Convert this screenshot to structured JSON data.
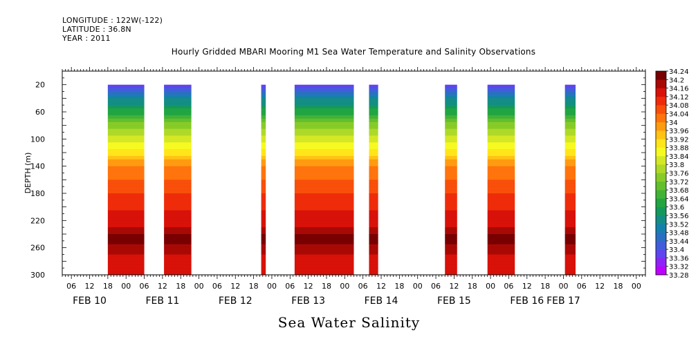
{
  "meta": {
    "longitude": "LONGITUDE : 122W(-122)",
    "latitude": "LATITUDE : 36.8N",
    "year": "YEAR : 2011"
  },
  "title": "Hourly Gridded MBARI Mooring M1 Sea Water Temperature and Salinity Observations",
  "subtitle": "Sea Water Salinity",
  "chart_data": {
    "type": "heatmap",
    "title": "Hourly Gridded MBARI Mooring M1 Sea Water Temperature and Salinity Observations",
    "xlabel": "",
    "ylabel": "DEPTH (m)",
    "colorbar_label": "Sea Water Salinity",
    "x_range_hours_from_feb10_00": [
      3,
      195
    ],
    "y_range_depth_m": [
      300,
      0
    ],
    "y_ticks": [
      20,
      60,
      100,
      140,
      180,
      220,
      260,
      300
    ],
    "x_hour_tick_labels": [
      "06",
      "12",
      "18",
      "00",
      "06",
      "12",
      "18",
      "00",
      "06",
      "12",
      "18",
      "00",
      "06",
      "12",
      "18",
      "00",
      "06",
      "12",
      "18",
      "00",
      "06",
      "12",
      "18",
      "00",
      "06",
      "12",
      "18",
      "00",
      "06",
      "12",
      "18",
      "00"
    ],
    "x_hour_tick_values": [
      6,
      12,
      18,
      24,
      30,
      36,
      42,
      48,
      54,
      60,
      66,
      72,
      78,
      84,
      90,
      96,
      102,
      108,
      114,
      120,
      126,
      132,
      138,
      144,
      150,
      156,
      162,
      168,
      174,
      180,
      186,
      192
    ],
    "x_day_labels": [
      {
        "label": "FEB 10",
        "hour": 12
      },
      {
        "label": "FEB 11",
        "hour": 36
      },
      {
        "label": "FEB 12",
        "hour": 60
      },
      {
        "label": "FEB 13",
        "hour": 84
      },
      {
        "label": "FEB 14",
        "hour": 108
      },
      {
        "label": "FEB 15",
        "hour": 132
      },
      {
        "label": "FEB 16",
        "hour": 156
      },
      {
        "label": "FEB 17",
        "hour": 168
      }
    ],
    "colorbar_levels": [
      33.28,
      33.32,
      33.36,
      33.4,
      33.44,
      33.48,
      33.52,
      33.56,
      33.6,
      33.64,
      33.68,
      33.72,
      33.76,
      33.8,
      33.84,
      33.88,
      33.92,
      33.96,
      34,
      34.04,
      34.08,
      34.12,
      34.16,
      34.2,
      34.24
    ],
    "colorbar_labels": [
      "34.24",
      "34.2",
      "34.16",
      "34.12",
      "34.08",
      "34.04",
      "34",
      "33.96",
      "33.92",
      "33.88",
      "33.84",
      "33.8",
      "33.76",
      "33.72",
      "33.68",
      "33.64",
      "33.6",
      "33.56",
      "33.52",
      "33.48",
      "33.44",
      "33.4",
      "33.36",
      "33.32",
      "33.28"
    ],
    "depth_profile": {
      "depths_m": [
        20,
        40,
        60,
        80,
        100,
        120,
        140,
        180,
        220,
        250,
        270,
        300
      ],
      "salinity": [
        33.36,
        33.52,
        33.62,
        33.74,
        33.82,
        33.9,
        34.0,
        34.08,
        34.14,
        34.22,
        34.16,
        34.14
      ]
    },
    "data_segments": [
      {
        "start_hour": 18,
        "end_hour": 30
      },
      {
        "start_hour": 36.5,
        "end_hour": 45.5
      },
      {
        "start_hour": 68.5,
        "end_hour": 70
      },
      {
        "start_hour": 79.5,
        "end_hour": 99
      },
      {
        "start_hour": 104,
        "end_hour": 107
      },
      {
        "start_hour": 129,
        "end_hour": 133
      },
      {
        "start_hour": 143,
        "end_hour": 152
      },
      {
        "start_hour": 168.5,
        "end_hour": 172
      }
    ]
  },
  "colors": {
    "background": "#ffffff",
    "axis": "#000000"
  }
}
